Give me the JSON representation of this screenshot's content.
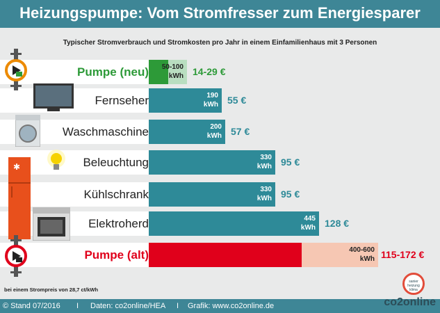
{
  "header": {
    "title": "Heizungspumpe: Vom Stromfresser zum Energiesparer"
  },
  "subtitle": "Typischer Stromverbrauch und Stromkosten pro Jahr in einem Einfamilienhaus mit 3 Personen",
  "footnote": "bei einem Strompreis von 28,7 ct/kWh",
  "footer": {
    "stand": "© Stand 07/2016",
    "sep1": "I",
    "daten": "Daten: co2online/HEA",
    "sep2": "I",
    "grafik": "Grafik: www.co2online.de"
  },
  "brand": {
    "logo": "co2online",
    "badge": "sanier heizung klima"
  },
  "colors": {
    "teal": "#2e8a98",
    "green": "#2d9a38",
    "green_light": "#b9dec0",
    "red": "#e0001b",
    "red_light": "#f6c7b3",
    "label_green": "#2d9a38",
    "label_red": "#e0001b"
  },
  "chart_data": {
    "type": "bar",
    "orientation": "horizontal",
    "xlim": [
      0,
      600
    ],
    "categories": [
      "Pumpe (neu)",
      "Fernseher",
      "Waschmaschine",
      "Beleuchtung",
      "Kühlschrank",
      "Elektroherd",
      "Pumpe (alt)"
    ],
    "bars": [
      {
        "label": "Pumpe (neu)",
        "value_min": 50,
        "value_max": 100,
        "value_text": "50-100",
        "unit": "kWh",
        "cost": "14-29 €",
        "style": "green",
        "icon": "pump-new-icon"
      },
      {
        "label": "Fernseher",
        "value": 190,
        "value_text": "190",
        "unit": "kWh",
        "cost": "55 €",
        "style": "teal",
        "icon": "tv-icon"
      },
      {
        "label": "Waschmaschine",
        "value": 200,
        "value_text": "200",
        "unit": "kWh",
        "cost": "57 €",
        "style": "teal",
        "icon": "washing-machine-icon"
      },
      {
        "label": "Beleuchtung",
        "value": 330,
        "value_text": "330",
        "unit": "kWh",
        "cost": "95 €",
        "style": "teal",
        "icon": "light-bulb-icon"
      },
      {
        "label": "Kühlschrank",
        "value": 330,
        "value_text": "330",
        "unit": "kWh",
        "cost": "95 €",
        "style": "teal",
        "icon": "fridge-icon"
      },
      {
        "label": "Elektroherd",
        "value": 445,
        "value_text": "445",
        "unit": "kWh",
        "cost": "128 €",
        "style": "teal",
        "icon": "stove-icon"
      },
      {
        "label": "Pumpe (alt)",
        "value_min": 400,
        "value_max": 600,
        "value_text": "400-600",
        "unit": "kWh",
        "cost": "115-172 €",
        "style": "red",
        "icon": "pump-old-icon"
      }
    ]
  }
}
